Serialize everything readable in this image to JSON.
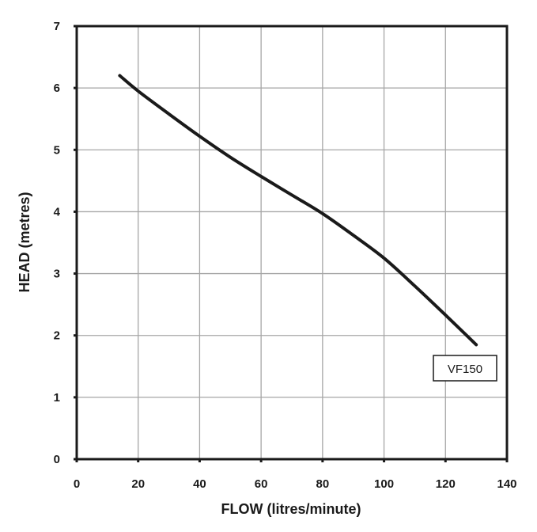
{
  "chart_data": {
    "type": "line",
    "title": "",
    "xlabel": "FLOW (litres/minute)",
    "ylabel": "HEAD (metres)",
    "xlim": [
      0,
      140
    ],
    "ylim": [
      0,
      7
    ],
    "xticks": [
      0,
      20,
      40,
      60,
      80,
      100,
      120,
      140
    ],
    "yticks": [
      0,
      1,
      2,
      3,
      4,
      5,
      6,
      7
    ],
    "grid": true,
    "series": [
      {
        "name": "VF150",
        "color": "#1a1a1a",
        "x": [
          14,
          20,
          30,
          40,
          50,
          60,
          70,
          80,
          90,
          100,
          110,
          120,
          130
        ],
        "y": [
          6.2,
          5.95,
          5.58,
          5.22,
          4.88,
          4.57,
          4.27,
          3.97,
          3.62,
          3.25,
          2.8,
          2.33,
          1.85
        ]
      }
    ]
  }
}
